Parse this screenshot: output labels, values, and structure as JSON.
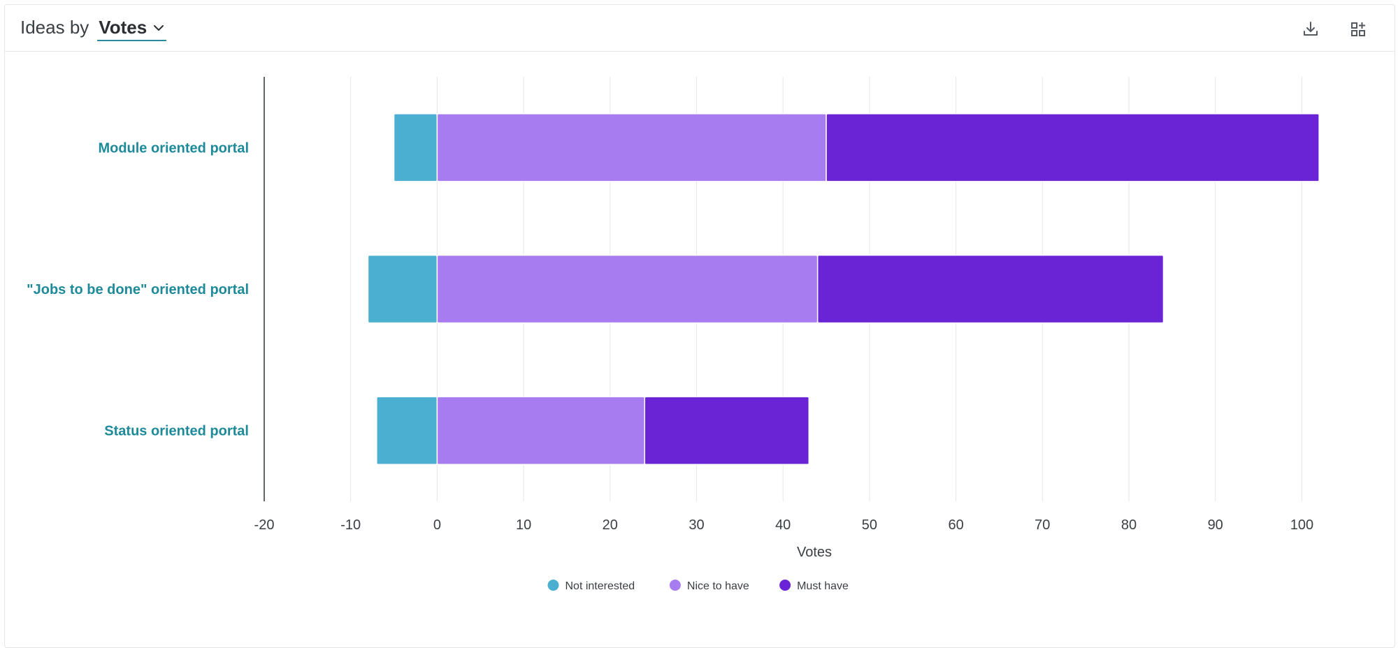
{
  "header": {
    "title_prefix": "Ideas by",
    "metric_label": "Votes",
    "icons": [
      "download-icon",
      "add-widget-icon"
    ]
  },
  "chart_data": {
    "type": "bar",
    "orientation": "horizontal",
    "stacked": true,
    "categories": [
      "Module oriented portal",
      "\"Jobs to be done\" oriented portal",
      "Status oriented portal"
    ],
    "series": [
      {
        "name": "Not interested",
        "color": "#4aafd0",
        "values": [
          -5,
          -8,
          -7
        ]
      },
      {
        "name": "Nice to have",
        "color": "#a77cf0",
        "values": [
          45,
          44,
          24
        ]
      },
      {
        "name": "Must have",
        "color": "#6a24d6",
        "values": [
          57,
          40,
          19
        ]
      }
    ],
    "xlabel": "Votes",
    "xlim": [
      -20,
      102
    ],
    "xticks": [
      -20,
      -10,
      0,
      10,
      20,
      30,
      40,
      50,
      60,
      70,
      80,
      90,
      100
    ],
    "grid": true,
    "legend": "bottom-center",
    "category_label_color": "#1e8a99"
  }
}
